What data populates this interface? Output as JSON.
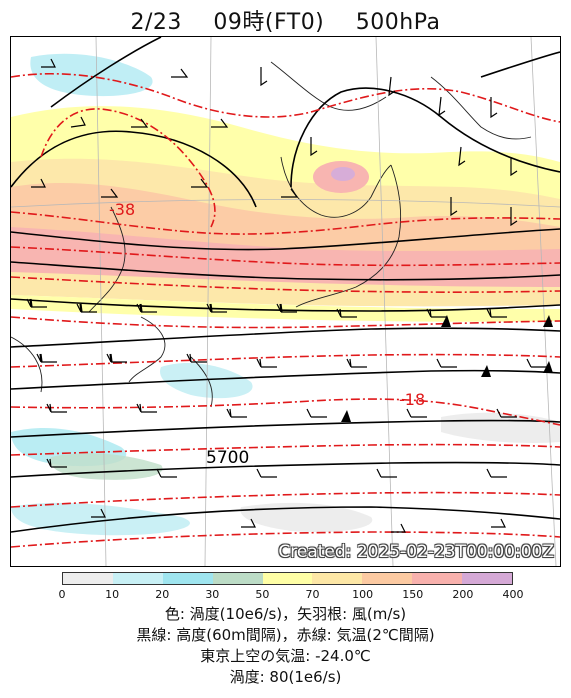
{
  "title": {
    "date": "2/23",
    "time": "09時(FT0)",
    "level": "500hPa"
  },
  "map": {
    "contour_labels": {
      "height": "5700",
      "temp_north": "-38",
      "temp_south": "-18"
    },
    "created_stamp": "Created: 2025-02-23T00:00:00Z",
    "colors": {
      "height_line": "#000000",
      "temp_line": "#e0191b",
      "land_outline": "#222222"
    }
  },
  "colorbar": {
    "ticks": [
      "0",
      "10",
      "20",
      "30",
      "50",
      "70",
      "100",
      "150",
      "200",
      "400"
    ],
    "colors": [
      "#ededed",
      "#c8f0f5",
      "#9fe5ef",
      "#bcdcc6",
      "#ffffa6",
      "#fde7a6",
      "#fccaa2",
      "#f8b1ad",
      "#d5a9d6"
    ]
  },
  "legend": {
    "line1": "色: 渦度(10e6/s)，矢羽根: 風(m/s)",
    "line2": "黒線: 高度(60m間隔)，赤線: 気温(2℃間隔)",
    "line3": "東京上空の気温: -24.0℃",
    "line4": "渦度: 80(1e6/s)"
  }
}
